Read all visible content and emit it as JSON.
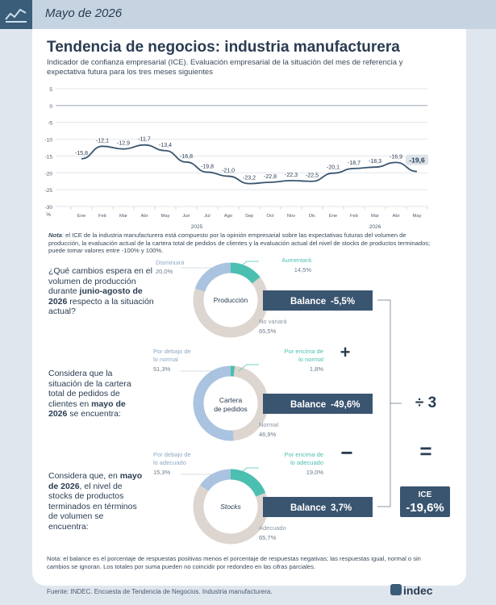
{
  "header": {
    "date": "Mayo de 2026"
  },
  "title": "Tendencia de negocios: industria manufacturera",
  "subtitle": "Indicador de confianza empresarial (ICE). Evaluación empresarial de la situación del mes de referencia y expectativa futura para los tres meses siguientes",
  "chart_data": {
    "type": "line",
    "categories": [
      "Ene",
      "Feb",
      "Mar",
      "Abr",
      "May",
      "Jun",
      "Jul",
      "Ago",
      "Sep",
      "Oct",
      "Nov",
      "Dic",
      "Ene",
      "Feb",
      "Mar",
      "Abr",
      "May"
    ],
    "year_labels": [
      "2025",
      "2026"
    ],
    "values": [
      -15.8,
      -12.1,
      -12.9,
      -11.7,
      -13.4,
      -16.8,
      -19.8,
      -21.0,
      -23.2,
      -22.8,
      -22.3,
      -22.5,
      -20.1,
      -18.7,
      -18.3,
      -16.9,
      -19.6
    ],
    "value_labels": [
      "-15,8",
      "-12,1",
      "-12,9",
      "-11,7",
      "-13,4",
      "-16,8",
      "-19,8",
      "-21,0",
      "-23,2",
      "-22,8",
      "-22,3",
      "-22,5",
      "-20,1",
      "-18,7",
      "-18,3",
      "-16,9",
      "-19,6"
    ],
    "ylim": [
      -30,
      5
    ],
    "yticks": [
      "5",
      "0",
      "-5",
      "-10",
      "-15",
      "-20",
      "-25",
      "-30"
    ],
    "ylabel": "%",
    "grid": true,
    "color": "#3a5570"
  },
  "note1": {
    "prefix": "Nota",
    "text": ": el ICE de la industria manufacturera está compuesto por la opinión empresarial sobre las expectativas futuras del volumen de producción, la evaluación actual de la cartera total de pedidos de clientes y la evaluación actual del nivel de stocks de productos terminados; puede tomar valores entre -100% y 100%."
  },
  "questions": [
    {
      "pre": "¿Qué cambios espera en el volumen de producción durante ",
      "bold": "junio-agosto de 2026",
      "post": " respecto a la situación actual?"
    },
    {
      "pre": "Considera que la situación de la cartera total de pedidos de clientes en ",
      "bold": "mayo de 2026",
      "post": " se encuentra:"
    },
    {
      "pre": "Considera que, en ",
      "bold": "mayo de 2026",
      "post": ", el nivel de stocks de productos terminados en términos de volumen se encuentra:"
    }
  ],
  "donuts": [
    {
      "name": "Producción",
      "balance_label": "Balance",
      "balance": "-5,5%",
      "negative": {
        "label": "Disminuirá",
        "value": "20,0%",
        "pct": 20.0
      },
      "positive": {
        "label": "Aumentará",
        "value": "14,5%",
        "pct": 14.5
      },
      "neutral": {
        "label": "No variará",
        "value": "65,5%",
        "pct": 65.5
      }
    },
    {
      "name": "Cartera de pedidos",
      "balance_label": "Balance",
      "balance": "-49,6%",
      "negative": {
        "label": "Por debajo de lo normal",
        "value": "51,3%",
        "pct": 51.3
      },
      "positive": {
        "label": "Por encima de lo normal",
        "value": "1,8%",
        "pct": 1.8
      },
      "neutral": {
        "label": "Normal",
        "value": "46,9%",
        "pct": 46.9
      }
    },
    {
      "name": "Stocks",
      "balance_label": "Balance",
      "balance": "3,7%",
      "negative": {
        "label": "Por debajo de lo adecuado",
        "value": "15,3%",
        "pct": 15.3
      },
      "positive": {
        "label": "Por encima de lo adecuado",
        "value": "19,0%",
        "pct": 19.0
      },
      "neutral": {
        "label": "Adecuado",
        "value": "65,7%",
        "pct": 65.7
      }
    }
  ],
  "operators": {
    "plus": "+",
    "minus": "−",
    "equals": "=",
    "divide": "÷ 3"
  },
  "ice": {
    "label": "ICE",
    "value": "-19,6%"
  },
  "colors": {
    "negative": "#a9c3e0",
    "positive": "#4bbfb0",
    "neutral": "#ddd5cf",
    "dark": "#3a5570",
    "accent": "#2a3c52"
  },
  "note2": "Nota: el balance es el porcentaje de respuestas positivas menos el porcentaje de respuestas negativas; las respuestas igual, normal o sin cambios se ignoran. Los totales por suma pueden no coincidir por redondeo en las cifras parciales.",
  "source": "Fuente: INDEC. Encuesta de Tendencia de Negocios. Industria manufacturera.",
  "brand": "indec"
}
